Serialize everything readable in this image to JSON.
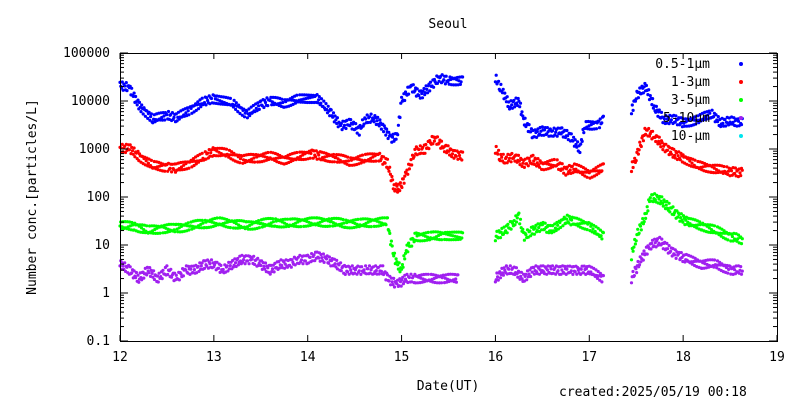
{
  "created": "created:2025/05/19 00:18",
  "chart_data": {
    "type": "scatter",
    "title": "Seoul",
    "xlabel": "Date(UT)",
    "ylabel": "Number conc.[particles/L]",
    "xlim": [
      12,
      19
    ],
    "ylim": [
      0.1,
      100000
    ],
    "y_scale": "log",
    "grid": false,
    "legend_position": "top-right",
    "x_ticks": [
      "12",
      "13",
      "14",
      "15",
      "16",
      "17",
      "18",
      "19"
    ],
    "y_ticks": [
      "0.1",
      "1",
      "10",
      "100",
      "1000",
      "10000",
      "100000"
    ],
    "series": [
      {
        "name": "0.5-1μm",
        "color": "#0000ff",
        "values": [
          [
            12.0,
            21000
          ],
          [
            12.1,
            19000
          ],
          [
            12.2,
            8000
          ],
          [
            12.35,
            4200
          ],
          [
            12.5,
            5000
          ],
          [
            12.6,
            4500
          ],
          [
            12.75,
            6500
          ],
          [
            12.9,
            10000
          ],
          [
            13.0,
            11000
          ],
          [
            13.2,
            9000
          ],
          [
            13.35,
            5200
          ],
          [
            13.5,
            8500
          ],
          [
            13.6,
            10000
          ],
          [
            13.75,
            9000
          ],
          [
            13.9,
            11000
          ],
          [
            14.1,
            11500
          ],
          [
            14.25,
            5500
          ],
          [
            14.35,
            3000
          ],
          [
            14.45,
            3500
          ],
          [
            14.55,
            2400
          ],
          [
            14.6,
            4000
          ],
          [
            14.7,
            4500
          ],
          [
            14.8,
            3000
          ],
          [
            14.88,
            1700
          ],
          [
            14.95,
            1700
          ],
          [
            15.0,
            10000
          ],
          [
            15.1,
            20000
          ],
          [
            15.2,
            13000
          ],
          [
            15.3,
            20000
          ],
          [
            15.4,
            30000
          ],
          [
            15.5,
            27000
          ],
          [
            15.65,
            26000
          ],
          [
            16.0,
            30000
          ],
          [
            16.05,
            20000
          ],
          [
            16.15,
            8000
          ],
          [
            16.25,
            10000
          ],
          [
            16.3,
            4000
          ],
          [
            16.4,
            2000
          ],
          [
            16.5,
            2400
          ],
          [
            16.6,
            2200
          ],
          [
            16.7,
            2300
          ],
          [
            16.8,
            1800
          ],
          [
            16.9,
            1000
          ],
          [
            16.95,
            3000
          ],
          [
            17.1,
            3300
          ],
          [
            17.15,
            4000
          ],
          [
            17.45,
            6000
          ],
          [
            17.5,
            13000
          ],
          [
            17.6,
            20000
          ],
          [
            17.7,
            7000
          ],
          [
            17.8,
            4000
          ],
          [
            17.9,
            4200
          ],
          [
            18.0,
            3500
          ],
          [
            18.15,
            4000
          ],
          [
            18.3,
            5500
          ],
          [
            18.4,
            3500
          ],
          [
            18.5,
            3800
          ],
          [
            18.63,
            3600
          ]
        ]
      },
      {
        "name": "1-3μm",
        "color": "#ff0000",
        "values": [
          [
            12.0,
            1000
          ],
          [
            12.1,
            1050
          ],
          [
            12.2,
            700
          ],
          [
            12.35,
            450
          ],
          [
            12.5,
            420
          ],
          [
            12.6,
            400
          ],
          [
            12.75,
            500
          ],
          [
            12.9,
            700
          ],
          [
            13.0,
            900
          ],
          [
            13.15,
            800
          ],
          [
            13.3,
            600
          ],
          [
            13.45,
            650
          ],
          [
            13.6,
            700
          ],
          [
            13.75,
            600
          ],
          [
            13.9,
            700
          ],
          [
            14.05,
            800
          ],
          [
            14.15,
            700
          ],
          [
            14.3,
            650
          ],
          [
            14.45,
            550
          ],
          [
            14.6,
            620
          ],
          [
            14.75,
            700
          ],
          [
            14.85,
            500
          ],
          [
            14.92,
            160
          ],
          [
            14.98,
            150
          ],
          [
            15.05,
            300
          ],
          [
            15.15,
            900
          ],
          [
            15.25,
            1000
          ],
          [
            15.35,
            1700
          ],
          [
            15.45,
            1100
          ],
          [
            15.55,
            800
          ],
          [
            15.65,
            700
          ],
          [
            16.0,
            1000
          ],
          [
            16.05,
            700
          ],
          [
            16.1,
            600
          ],
          [
            16.2,
            700
          ],
          [
            16.3,
            500
          ],
          [
            16.4,
            600
          ],
          [
            16.5,
            450
          ],
          [
            16.65,
            500
          ],
          [
            16.75,
            350
          ],
          [
            16.85,
            400
          ],
          [
            17.0,
            300
          ],
          [
            17.15,
            400
          ],
          [
            17.45,
            400
          ],
          [
            17.5,
            700
          ],
          [
            17.6,
            2400
          ],
          [
            17.7,
            1800
          ],
          [
            17.8,
            1100
          ],
          [
            17.9,
            800
          ],
          [
            18.0,
            650
          ],
          [
            18.15,
            450
          ],
          [
            18.3,
            400
          ],
          [
            18.45,
            350
          ],
          [
            18.63,
            320
          ]
        ]
      },
      {
        "name": "3-5μm",
        "color": "#00ff00",
        "values": [
          [
            12.0,
            25
          ],
          [
            12.15,
            25
          ],
          [
            12.3,
            20
          ],
          [
            12.45,
            22
          ],
          [
            12.6,
            22
          ],
          [
            12.75,
            25
          ],
          [
            12.9,
            28
          ],
          [
            13.05,
            30
          ],
          [
            13.2,
            28
          ],
          [
            13.35,
            25
          ],
          [
            13.5,
            28
          ],
          [
            13.65,
            30
          ],
          [
            13.8,
            28
          ],
          [
            13.95,
            30
          ],
          [
            14.1,
            30
          ],
          [
            14.25,
            30
          ],
          [
            14.4,
            28
          ],
          [
            14.55,
            28
          ],
          [
            14.7,
            30
          ],
          [
            14.85,
            30
          ],
          [
            14.9,
            8
          ],
          [
            14.95,
            4
          ],
          [
            15.0,
            3
          ],
          [
            15.05,
            8
          ],
          [
            15.15,
            15
          ],
          [
            15.3,
            15
          ],
          [
            15.45,
            16
          ],
          [
            15.65,
            15
          ],
          [
            16.0,
            15
          ],
          [
            16.1,
            20
          ],
          [
            16.2,
            30
          ],
          [
            16.25,
            40
          ],
          [
            16.3,
            15
          ],
          [
            16.4,
            20
          ],
          [
            16.5,
            25
          ],
          [
            16.6,
            20
          ],
          [
            16.75,
            35
          ],
          [
            16.85,
            30
          ],
          [
            17.0,
            25
          ],
          [
            17.15,
            15
          ],
          [
            17.45,
            6
          ],
          [
            17.5,
            15
          ],
          [
            17.6,
            40
          ],
          [
            17.65,
            100
          ],
          [
            17.75,
            90
          ],
          [
            17.85,
            60
          ],
          [
            17.95,
            40
          ],
          [
            18.05,
            30
          ],
          [
            18.2,
            25
          ],
          [
            18.35,
            20
          ],
          [
            18.5,
            15
          ],
          [
            18.63,
            13
          ]
        ]
      },
      {
        "name": "5-10μm",
        "color": "#a020f0",
        "values": [
          [
            12.0,
            4
          ],
          [
            12.1,
            3
          ],
          [
            12.2,
            2
          ],
          [
            12.3,
            3
          ],
          [
            12.4,
            2
          ],
          [
            12.5,
            3
          ],
          [
            12.6,
            2
          ],
          [
            12.7,
            3
          ],
          [
            12.8,
            3
          ],
          [
            12.9,
            4
          ],
          [
            13.0,
            4
          ],
          [
            13.1,
            3
          ],
          [
            13.2,
            4
          ],
          [
            13.3,
            5
          ],
          [
            13.4,
            5
          ],
          [
            13.5,
            4
          ],
          [
            13.6,
            3
          ],
          [
            13.7,
            4
          ],
          [
            13.8,
            4
          ],
          [
            13.9,
            5
          ],
          [
            14.0,
            5
          ],
          [
            14.1,
            6
          ],
          [
            14.2,
            5
          ],
          [
            14.3,
            4
          ],
          [
            14.4,
            3
          ],
          [
            14.5,
            3
          ],
          [
            14.6,
            3
          ],
          [
            14.7,
            3
          ],
          [
            14.8,
            3
          ],
          [
            14.85,
            2
          ],
          [
            14.95,
            1.5
          ],
          [
            15.05,
            2
          ],
          [
            15.15,
            2
          ],
          [
            15.3,
            2
          ],
          [
            15.45,
            2
          ],
          [
            15.6,
            2
          ],
          [
            16.0,
            2
          ],
          [
            16.1,
            3
          ],
          [
            16.2,
            3
          ],
          [
            16.3,
            2
          ],
          [
            16.4,
            3
          ],
          [
            16.5,
            3
          ],
          [
            16.6,
            3
          ],
          [
            16.7,
            3
          ],
          [
            16.8,
            3
          ],
          [
            16.9,
            3
          ],
          [
            17.0,
            3
          ],
          [
            17.15,
            2
          ],
          [
            17.45,
            2
          ],
          [
            17.55,
            5
          ],
          [
            17.65,
            10
          ],
          [
            17.75,
            12
          ],
          [
            17.85,
            8
          ],
          [
            17.95,
            6
          ],
          [
            18.05,
            5
          ],
          [
            18.2,
            4
          ],
          [
            18.35,
            4
          ],
          [
            18.5,
            3
          ],
          [
            18.63,
            3
          ]
        ]
      },
      {
        "name": "10-μm",
        "color": "#00e5ee",
        "values": []
      }
    ]
  }
}
